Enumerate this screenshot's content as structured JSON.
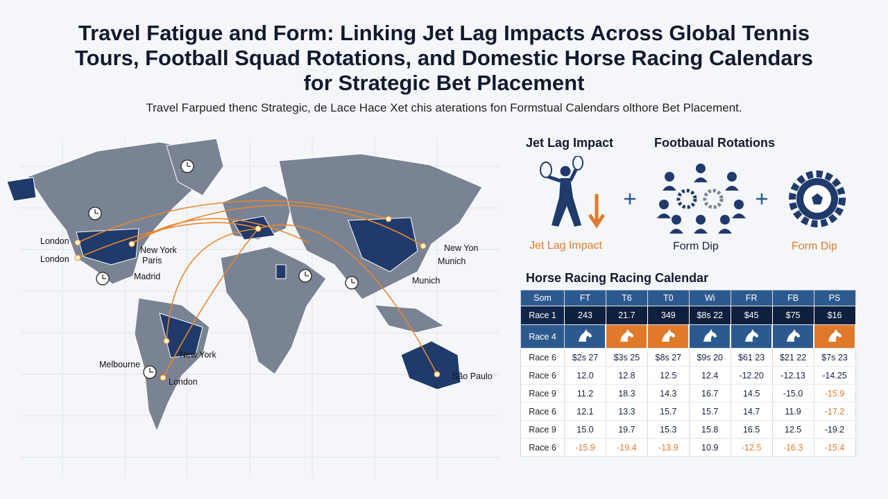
{
  "title": "Travel Fatigue and Form: Linking Jet Lag Impacts Across Global Tennis Tours, Football Squad Rotations, and Domestic Horse Racing Calendars for Strategic Bet Placement",
  "subtitle": "Travel Farpued thenc Strategic, de Lace Hace Xet chis aterations fon Formstual Calendars olthore Bet Placement.",
  "map": {
    "labels": [
      "London",
      "London",
      "New York",
      "Paris",
      "Madrid",
      "Melbourne",
      "London",
      "New York",
      "New Yon",
      "Munich",
      "Munich",
      "São Paulo"
    ]
  },
  "icons": {
    "headings": [
      "Jet Lag Impact",
      "Footbaual Rotations"
    ],
    "captions": [
      "Jet Lag Impact",
      "Form Dip",
      "Form Dip"
    ]
  },
  "table": {
    "title": "Horse Racing Racing Calendar",
    "header": [
      "Som",
      "FT",
      "T6",
      "T0",
      "Wi",
      "FR",
      "FB",
      "PS"
    ],
    "rows": [
      {
        "label": "Race 1",
        "cells": [
          "243",
          "21.7",
          "349",
          "$8s 22",
          "$45",
          "$75",
          "$16"
        ]
      },
      {
        "label": "Race 4"
      },
      {
        "label": "Race 6",
        "cells": [
          "$2s 27",
          "$3s 25",
          "$8s 27",
          "$9s 20",
          "$61 23",
          "$21 22",
          "$7s 23"
        ]
      },
      {
        "label": "Race 6",
        "cells": [
          "12.0",
          "12.8",
          "12.5",
          "12.4",
          "-12.20",
          "-12.13",
          "-14.25"
        ]
      },
      {
        "label": "Race 9",
        "cells": [
          "11.2",
          "18.3",
          "14.3",
          "16.7",
          "14.5",
          "-15.0",
          "-15.9"
        ]
      },
      {
        "label": "Race 6",
        "cells": [
          "12.1",
          "13.3",
          "15.7",
          "15.7",
          "14.7",
          "11.9",
          "-17.2"
        ]
      },
      {
        "label": "Race 9",
        "cells": [
          "15.0",
          "19.7",
          "15.3",
          "15.8",
          "16.5",
          "12.5",
          "-19.2"
        ]
      },
      {
        "label": "Race 6",
        "cells": [
          "-15.9",
          "-19.4",
          "-13.9",
          "10.9",
          "-12.5",
          "-16.3",
          "-15.4"
        ]
      }
    ]
  }
}
